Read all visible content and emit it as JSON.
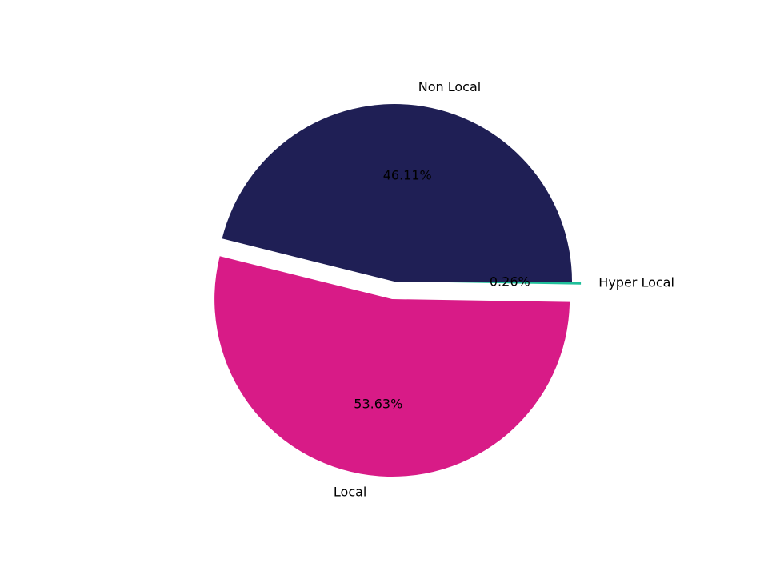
{
  "chart_data": {
    "type": "pie",
    "categories": [
      "Non Local",
      "Local",
      "Hyper Local"
    ],
    "values": [
      46.11,
      53.63,
      0.26
    ],
    "value_labels": [
      "46.11%",
      "53.63%",
      "0.26%"
    ],
    "colors": [
      "#1f1f55",
      "#d81b87",
      "#1fbf9a"
    ],
    "explode": [
      0,
      0.1,
      0.05
    ]
  }
}
